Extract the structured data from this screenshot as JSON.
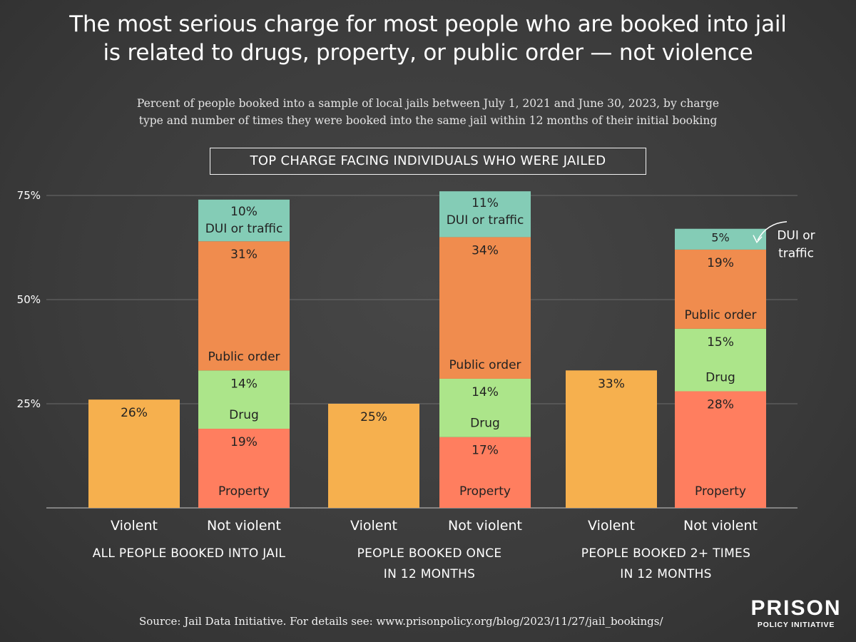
{
  "header": {
    "title_line1": "The most serious charge for most people who are booked into jail",
    "title_line2": "is related to drugs, property, or public order — not violence",
    "subtitle_line1": "Percent of people booked into a sample of local jails between July 1, 2021 and June 30, 2023, by charge",
    "subtitle_line2": "type and number of times they were booked into the same jail within 12 months of their initial booking"
  },
  "chart_heading": "TOP CHARGE FACING INDIVIDUALS WHO WERE JAILED",
  "footer": {
    "source": "Source: Jail Data Initiative. For details see: www.prisonpolicy.org/blog/2023/11/27/jail_bookings/",
    "logo_main": "PRISON",
    "logo_sub": "POLICY INITIATIVE"
  },
  "colors": {
    "violent": "#f6b04e",
    "property": "#ff7e5f",
    "drug": "#ace58a",
    "public_order": "#f08c4e",
    "dui_traffic": "#84ccb6",
    "segment_text": "#222222",
    "axis_text": "#ffffff",
    "gridline": "#6b6b6b"
  },
  "chart_data": {
    "type": "bar",
    "stacked": true,
    "ylim": [
      0,
      75
    ],
    "yticks": [
      25,
      50,
      75
    ],
    "ytick_labels": [
      "25%",
      "50%",
      "75%"
    ],
    "grid": true,
    "groups": [
      {
        "label_lines": [
          "ALL PEOPLE BOOKED INTO JAIL"
        ],
        "bars": [
          {
            "label": "Violent",
            "segments": [
              {
                "key": "violent",
                "value": 26,
                "value_label": "26%",
                "name": ""
              }
            ]
          },
          {
            "label": "Not violent",
            "segments": [
              {
                "key": "property",
                "value": 19,
                "value_label": "19%",
                "name": "Property"
              },
              {
                "key": "drug",
                "value": 14,
                "value_label": "14%",
                "name": "Drug"
              },
              {
                "key": "public_order",
                "value": 31,
                "value_label": "31%",
                "name": "Public order"
              },
              {
                "key": "dui_traffic",
                "value": 10,
                "value_label": "10%",
                "name": "DUI or traffic"
              }
            ]
          }
        ]
      },
      {
        "label_lines": [
          "PEOPLE BOOKED ONCE",
          "IN 12 MONTHS"
        ],
        "bars": [
          {
            "label": "Violent",
            "segments": [
              {
                "key": "violent",
                "value": 25,
                "value_label": "25%",
                "name": ""
              }
            ]
          },
          {
            "label": "Not violent",
            "segments": [
              {
                "key": "property",
                "value": 17,
                "value_label": "17%",
                "name": "Property"
              },
              {
                "key": "drug",
                "value": 14,
                "value_label": "14%",
                "name": "Drug"
              },
              {
                "key": "public_order",
                "value": 34,
                "value_label": "34%",
                "name": "Public order"
              },
              {
                "key": "dui_traffic",
                "value": 11,
                "value_label": "11%",
                "name": "DUI or traffic"
              }
            ]
          }
        ]
      },
      {
        "label_lines": [
          "PEOPLE BOOKED 2+ TIMES",
          "IN 12 MONTHS"
        ],
        "bars": [
          {
            "label": "Violent",
            "segments": [
              {
                "key": "violent",
                "value": 33,
                "value_label": "33%",
                "name": ""
              }
            ]
          },
          {
            "label": "Not violent",
            "segments": [
              {
                "key": "property",
                "value": 28,
                "value_label": "28%",
                "name": "Property"
              },
              {
                "key": "drug",
                "value": 15,
                "value_label": "15%",
                "name": "Drug"
              },
              {
                "key": "public_order",
                "value": 19,
                "value_label": "19%",
                "name": "Public order"
              },
              {
                "key": "dui_traffic",
                "value": 5,
                "value_label": "5%",
                "name": ""
              }
            ]
          }
        ]
      }
    ],
    "annotation": {
      "text_lines": [
        "DUI or",
        "traffic"
      ],
      "target": "group 3 dui_traffic segment"
    }
  }
}
